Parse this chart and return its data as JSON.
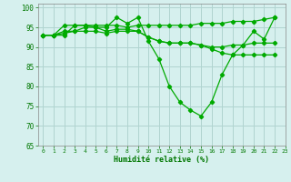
{
  "xlabel": "Humidité relative (%)",
  "background_color": "#d6f0ee",
  "grid_color": "#b0d4d0",
  "line_color": "#00aa00",
  "xlim": [
    -0.5,
    23
  ],
  "ylim": [
    65,
    101
  ],
  "yticks": [
    65,
    70,
    75,
    80,
    85,
    90,
    95,
    100
  ],
  "xticks": [
    0,
    1,
    2,
    3,
    4,
    5,
    6,
    7,
    8,
    9,
    10,
    11,
    12,
    13,
    14,
    15,
    16,
    17,
    18,
    19,
    20,
    21,
    22,
    23
  ],
  "lines": [
    [
      93,
      93,
      93,
      95.5,
      95.5,
      95,
      95,
      97.5,
      96,
      97.5,
      91.5,
      87,
      80,
      76,
      74,
      72.5,
      76,
      83,
      88,
      90.5,
      94,
      92,
      97.5
    ],
    [
      93,
      93,
      95.5,
      95.5,
      95.5,
      95.5,
      95.5,
      95.5,
      95,
      95.5,
      95.5,
      95.5,
      95.5,
      95.5,
      95.5,
      96,
      96,
      96,
      96.5,
      96.5,
      96.5,
      97,
      97.5
    ],
    [
      93,
      93,
      94,
      94,
      95,
      95,
      94,
      94.5,
      94.5,
      94,
      92.5,
      91.5,
      91,
      91,
      91,
      90.5,
      90,
      90,
      90.5,
      90.5,
      91,
      91,
      91
    ],
    [
      93,
      93,
      93.5,
      94,
      94,
      94,
      93.5,
      94,
      94,
      94,
      92.5,
      91.5,
      91,
      91,
      91,
      90.5,
      89.5,
      88.5,
      88,
      88,
      88,
      88,
      88
    ]
  ]
}
